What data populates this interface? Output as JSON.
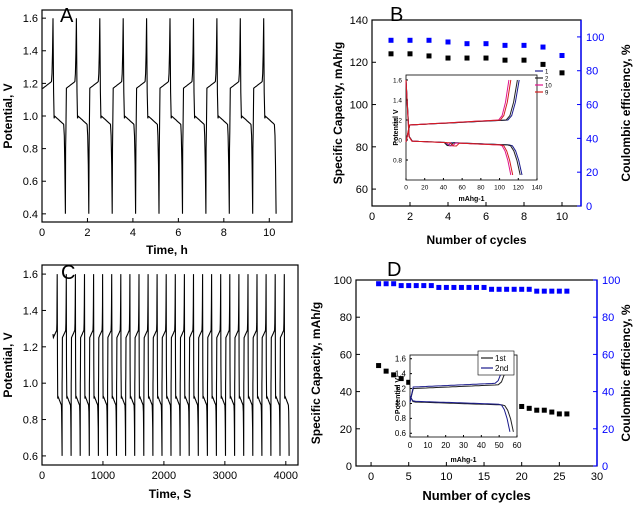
{
  "figure": {
    "colors": {
      "black": "#000000",
      "blue": "#0000ff",
      "navy": "#1a1a8c",
      "magenta": "#e0138c",
      "red": "#d41c1c",
      "pink": "#f060c0",
      "dark": "#202020"
    }
  },
  "chart_data": [
    {
      "id": "A",
      "panel_label": "A",
      "type": "line",
      "xlabel": "Time, h",
      "ylabel": "Potential, V",
      "xlim": [
        0,
        11
      ],
      "ylim": [
        0.35,
        1.65
      ],
      "xticks": [
        0,
        2,
        4,
        6,
        8,
        10
      ],
      "yticks": [
        0.4,
        0.6,
        0.8,
        1.0,
        1.2,
        1.4,
        1.6
      ],
      "ytick_labels": [
        "0.4",
        "0.6",
        "0.8",
        "1.0",
        "1.2",
        "1.4",
        "1.6"
      ],
      "cycles": 10,
      "cycle_period_h": 1.03,
      "charge_plateau_V": 1.17,
      "discharge_plateau_V": 1.0,
      "max_V": 1.6,
      "min_V": 0.4,
      "series": [
        {
          "values": "galvanostatic charge-discharge profile, 10 cycles",
          "color": "black"
        }
      ]
    },
    {
      "id": "B",
      "panel_label": "B",
      "type": "scatter",
      "xlabel": "Number of cycles",
      "ylabel": "Specific Capacity, mAh/g",
      "y2label": "Coulombic efficiency, %",
      "xlim": [
        0,
        11
      ],
      "ylim": [
        52,
        140
      ],
      "y2lim": [
        0,
        110
      ],
      "xticks": [
        0,
        2,
        4,
        6,
        8,
        10
      ],
      "yticks": [
        60,
        80,
        100,
        120,
        140
      ],
      "y2ticks": [
        0,
        20,
        40,
        60,
        80,
        100
      ],
      "series": [
        {
          "axis": "left",
          "marker": "square",
          "color": "black",
          "x": [
            1,
            2,
            3,
            4,
            5,
            6,
            7,
            8,
            9,
            10
          ],
          "values": [
            124,
            124,
            123,
            122,
            122,
            122,
            121,
            121,
            119,
            115
          ]
        },
        {
          "axis": "right",
          "marker": "square",
          "color": "blue",
          "x": [
            1,
            2,
            3,
            4,
            5,
            6,
            7,
            8,
            9,
            10
          ],
          "values": [
            98,
            98,
            98,
            97,
            96,
            96,
            95,
            95,
            94,
            89
          ]
        }
      ],
      "inset": {
        "type": "line",
        "xlabel": "mAhg-1",
        "ylabel": "Potential V",
        "xlim": [
          0,
          140
        ],
        "ylim": [
          0.6,
          1.65
        ],
        "xticks": [
          0,
          20,
          40,
          60,
          80,
          100,
          120,
          140
        ],
        "yticks": [
          0.8,
          1.0,
          1.2,
          1.4,
          1.6
        ],
        "ytick_labels": [
          "0.8",
          "1.0",
          "1.2",
          "1.4",
          "1.6"
        ],
        "legend": [
          "1",
          "2",
          "10",
          "9"
        ],
        "legend_colors": [
          "navy",
          "dark",
          "magenta",
          "red"
        ],
        "curves": [
          {
            "name": "1",
            "color": "navy",
            "charge_end": 121,
            "discharge_end": 124
          },
          {
            "name": "2",
            "color": "dark",
            "charge_end": 119,
            "discharge_end": 122
          },
          {
            "name": "10",
            "color": "magenta",
            "charge_end": 110,
            "discharge_end": 112
          },
          {
            "name": "9",
            "color": "red",
            "charge_end": 112,
            "discharge_end": 114
          }
        ]
      }
    },
    {
      "id": "C",
      "panel_label": "C",
      "type": "line",
      "xlabel": "Time, S",
      "ylabel": "Potential, V",
      "xlim": [
        0,
        4200
      ],
      "ylim": [
        0.55,
        1.65
      ],
      "xticks": [
        0,
        1000,
        2000,
        3000,
        4000
      ],
      "yticks": [
        0.6,
        0.8,
        1.0,
        1.2,
        1.4,
        1.6
      ],
      "ytick_labels": [
        "0.6",
        "0.8",
        "1.0",
        "1.2",
        "1.4",
        "1.6"
      ],
      "cycles": 26,
      "charge_plateau_V": 1.25,
      "discharge_plateau_V": 0.93,
      "max_V": 1.6,
      "min_V": 0.6,
      "series": [
        {
          "values": "galvanostatic charge-discharge profile, 26 cycles",
          "color": "black"
        }
      ]
    },
    {
      "id": "D",
      "panel_label": "D",
      "type": "scatter",
      "xlabel": "Number of cycles",
      "ylabel": "Specific Capacity, mAh/g",
      "y2label": "Coulombic efficiency, %",
      "xlim": [
        -2,
        30
      ],
      "ylim": [
        0,
        100
      ],
      "y2lim": [
        0,
        100
      ],
      "xticks": [
        0,
        5,
        10,
        15,
        20,
        25,
        30
      ],
      "yticks": [
        0,
        20,
        40,
        60,
        80,
        100
      ],
      "y2ticks": [
        0,
        20,
        40,
        60,
        80,
        100
      ],
      "series": [
        {
          "axis": "left",
          "marker": "square",
          "color": "black",
          "x": [
            1,
            2,
            3,
            4,
            5,
            6,
            7,
            8,
            9,
            10,
            11,
            12,
            13,
            14,
            15,
            16,
            17,
            18,
            19,
            20,
            21,
            22,
            23,
            24,
            25,
            26
          ],
          "values": [
            54,
            51,
            49,
            47,
            45,
            44,
            43,
            42,
            41,
            40,
            39,
            38,
            37,
            36,
            35,
            34,
            34,
            33,
            32,
            32,
            31,
            30,
            30,
            29,
            28,
            28
          ]
        },
        {
          "axis": "right",
          "marker": "square",
          "color": "blue",
          "x": [
            1,
            2,
            3,
            4,
            5,
            6,
            7,
            8,
            9,
            10,
            11,
            12,
            13,
            14,
            15,
            16,
            17,
            18,
            19,
            20,
            21,
            22,
            23,
            24,
            25,
            26
          ],
          "values": [
            98,
            98,
            98,
            97,
            97,
            97,
            97,
            97,
            96,
            96,
            96,
            96,
            96,
            96,
            96,
            95,
            95,
            95,
            95,
            95,
            95,
            94,
            94,
            94,
            94,
            94
          ]
        }
      ],
      "inset": {
        "type": "line",
        "xlabel": "mAhg-1",
        "ylabel": "Potential V",
        "xlim": [
          0,
          60
        ],
        "ylim": [
          0.55,
          1.65
        ],
        "xticks": [
          0,
          10,
          20,
          30,
          40,
          50,
          60
        ],
        "yticks": [
          0.6,
          0.8,
          1.0,
          1.2,
          1.4,
          1.6
        ],
        "ytick_labels": [
          "0.6",
          "0.8",
          "1.0",
          "1.2",
          "1.4",
          "1.6"
        ],
        "legend": [
          "1st",
          "2nd"
        ],
        "legend_colors": [
          "dark",
          "navy"
        ],
        "curves": [
          {
            "name": "1st",
            "color": "dark",
            "charge_end": 55,
            "discharge_end": 58
          },
          {
            "name": "2nd",
            "color": "navy",
            "charge_end": 53,
            "discharge_end": 56
          }
        ]
      }
    }
  ]
}
